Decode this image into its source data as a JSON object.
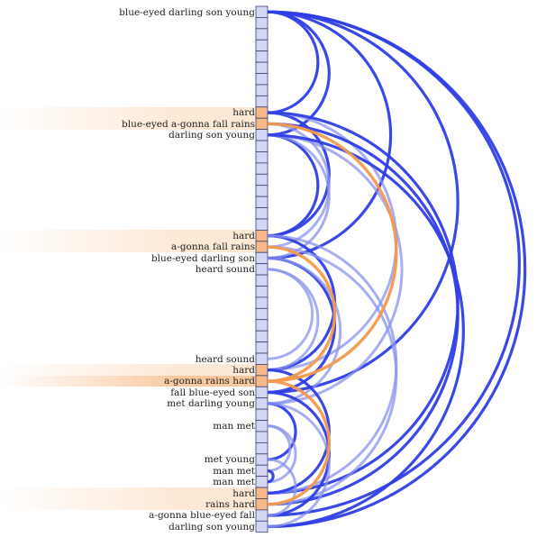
{
  "labels": [
    {
      "row": 0,
      "text": "blue-eyed darling son young"
    },
    {
      "row": 9,
      "text": "hard",
      "hl": 1
    },
    {
      "row": 10,
      "text": "blue-eyed a-gonna fall rains",
      "hl": 1
    },
    {
      "row": 11,
      "text": "darling son young"
    },
    {
      "row": 20,
      "text": "hard",
      "hl": 1
    },
    {
      "row": 21,
      "text": "a-gonna fall rains",
      "hl": 1
    },
    {
      "row": 22,
      "text": "blue-eyed darling son"
    },
    {
      "row": 23,
      "text": "heard sound"
    },
    {
      "row": 31,
      "text": "heard sound"
    },
    {
      "row": 32,
      "text": "hard",
      "hl": 1
    },
    {
      "row": 33,
      "text": "a-gonna rains hard",
      "hl": 2
    },
    {
      "row": 34,
      "text": "fall blue-eyed son"
    },
    {
      "row": 35,
      "text": "met darling young"
    },
    {
      "row": 37,
      "text": "man met"
    },
    {
      "row": 40,
      "text": "met young"
    },
    {
      "row": 41,
      "text": "man met"
    },
    {
      "row": 42,
      "text": "man met"
    },
    {
      "row": 43,
      "text": "hard",
      "hl": 1
    },
    {
      "row": 44,
      "text": "rains hard",
      "hl": 1
    },
    {
      "row": 45,
      "text": "a-gonna blue-eyed fall"
    },
    {
      "row": 46,
      "text": "darling son young"
    }
  ],
  "highlighted_rows": [
    9,
    10,
    20,
    21,
    32,
    33,
    43,
    44
  ],
  "colors": {
    "arc_blue": "#2f3ee6",
    "arc_light_blue": "#8b93ee",
    "arc_orange": "#f39a4c",
    "cell_fill": "#d3d6f4",
    "cell_fill_highlight": "#f7b98a",
    "cell_border": "#3b3f6e",
    "highlight_band": "#fde8d6",
    "highlight_band_strong": "#f8c9a0"
  },
  "arcs": [
    {
      "from": 0,
      "to": 9,
      "style": "blue"
    },
    {
      "from": 0,
      "to": 11,
      "style": "blue"
    },
    {
      "from": 0,
      "to": 22,
      "style": "blue"
    },
    {
      "from": 0,
      "to": 34,
      "style": "blue"
    },
    {
      "from": 0,
      "to": 45,
      "style": "blue"
    },
    {
      "from": 0,
      "to": 46,
      "style": "blue"
    },
    {
      "from": 9,
      "to": 20,
      "style": "blue"
    },
    {
      "from": 9,
      "to": 32,
      "style": "light"
    },
    {
      "from": 9,
      "to": 43,
      "style": "blue"
    },
    {
      "from": 10,
      "to": 21,
      "style": "light"
    },
    {
      "from": 10,
      "to": 33,
      "style": "orange"
    },
    {
      "from": 10,
      "to": 44,
      "style": "blue"
    },
    {
      "from": 11,
      "to": 20,
      "style": "blue"
    },
    {
      "from": 11,
      "to": 22,
      "style": "light"
    },
    {
      "from": 11,
      "to": 35,
      "style": "light"
    },
    {
      "from": 11,
      "to": 46,
      "style": "blue"
    },
    {
      "from": 20,
      "to": 32,
      "style": "blue"
    },
    {
      "from": 20,
      "to": 43,
      "style": "light"
    },
    {
      "from": 21,
      "to": 33,
      "style": "orange"
    },
    {
      "from": 21,
      "to": 44,
      "style": "light"
    },
    {
      "from": 22,
      "to": 34,
      "style": "blue"
    },
    {
      "from": 22,
      "to": 35,
      "style": "light"
    },
    {
      "from": 23,
      "to": 31,
      "style": "light"
    },
    {
      "from": 23,
      "to": 32,
      "style": "light"
    },
    {
      "from": 32,
      "to": 43,
      "style": "blue"
    },
    {
      "from": 33,
      "to": 44,
      "style": "orange"
    },
    {
      "from": 34,
      "to": 45,
      "style": "blue"
    },
    {
      "from": 35,
      "to": 40,
      "style": "blue"
    },
    {
      "from": 35,
      "to": 46,
      "style": "light"
    },
    {
      "from": 37,
      "to": 41,
      "style": "light"
    },
    {
      "from": 37,
      "to": 42,
      "style": "light"
    },
    {
      "from": 41,
      "to": 42,
      "style": "blue"
    },
    {
      "from": 40,
      "to": 45,
      "style": "light"
    }
  ]
}
